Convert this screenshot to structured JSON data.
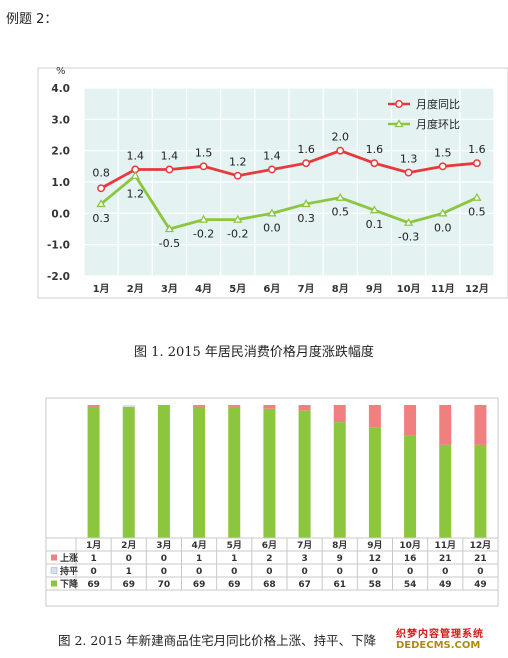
{
  "page": {
    "heading": "例题 2："
  },
  "chart1": {
    "caption": "图 1. 2015 年居民消费价格月度涨跌幅度",
    "unit_label": "%",
    "chart_data": {
      "type": "line",
      "title": "",
      "xlabel": "",
      "ylabel": "%",
      "ylim": [
        -2.0,
        4.0
      ],
      "yticks": [
        "4.0",
        "3.0",
        "2.0",
        "1.0",
        "0.0",
        "-1.0",
        "-2.0"
      ],
      "categories": [
        "1月",
        "2月",
        "3月",
        "4月",
        "5月",
        "6月",
        "7月",
        "8月",
        "9月",
        "10月",
        "11月",
        "12月"
      ],
      "series": [
        {
          "name": "月度同比",
          "values": [
            0.8,
            1.4,
            1.4,
            1.5,
            1.2,
            1.4,
            1.6,
            2.0,
            1.6,
            1.3,
            1.5,
            1.6
          ],
          "color": "#e8393d"
        },
        {
          "name": "月度环比",
          "values": [
            0.3,
            1.2,
            -0.5,
            -0.2,
            -0.2,
            0.0,
            0.3,
            0.5,
            0.1,
            -0.3,
            0.0,
            0.5
          ],
          "color": "#8cc63f"
        }
      ],
      "grid": true,
      "legend": "top-right",
      "plot_background": "#e4f2f2"
    }
  },
  "chart2": {
    "caption": "图 2. 2015 年新建商品住宅月同比价格上涨、持平、下降",
    "chart_data": {
      "type": "bar",
      "stacked": true,
      "title": "",
      "categories": [
        "1月",
        "2月",
        "3月",
        "4月",
        "5月",
        "6月",
        "7月",
        "8月",
        "9月",
        "10月",
        "11月",
        "12月"
      ],
      "series": [
        {
          "name": "上涨",
          "values": [
            1,
            0,
            0,
            1,
            1,
            2,
            3,
            9,
            12,
            16,
            21,
            21
          ],
          "color": "#f08080"
        },
        {
          "name": "持平",
          "values": [
            0,
            1,
            0,
            0,
            0,
            0,
            0,
            0,
            0,
            0,
            0,
            0
          ],
          "color": "#d8e0f0"
        },
        {
          "name": "下降",
          "values": [
            69,
            69,
            70,
            69,
            69,
            68,
            67,
            61,
            58,
            54,
            49,
            49
          ],
          "color": "#8cc63f"
        }
      ],
      "ylim": [
        0,
        70
      ],
      "legend": "data-table"
    }
  },
  "watermark": {
    "line1": "织梦内容管理系统",
    "line2": "DEDECMS.COM"
  }
}
